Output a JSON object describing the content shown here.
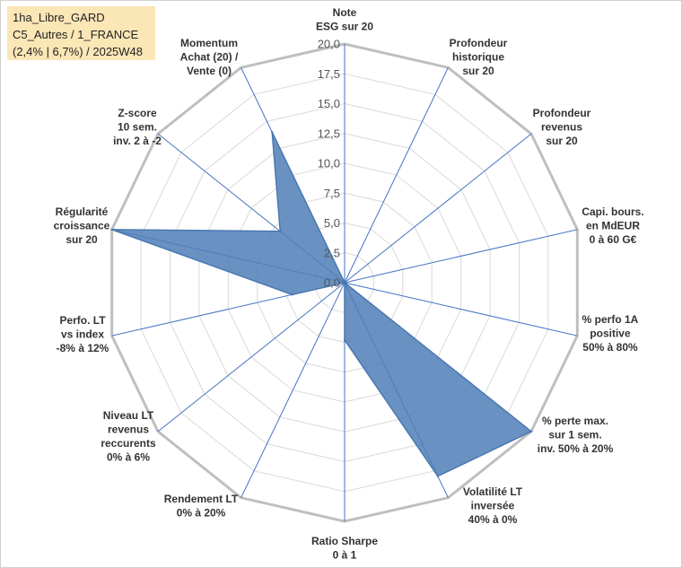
{
  "title_lines": [
    "1ha_Libre_GARD",
    "C5_Autres / 1_FRANCE",
    "(2,4% | 6,7%) / 2025W48"
  ],
  "colors": {
    "series_fill": "#4f7fb8",
    "series_stroke": "#4a78b0",
    "grid": "#d9d9d9",
    "outer": "#bfbfbf",
    "spoke": "#4472c4"
  },
  "chart_data": {
    "type": "radar",
    "range": [
      0,
      20
    ],
    "ticks": [
      "0,0",
      "2,5",
      "5,0",
      "7,5",
      "10,0",
      "12,5",
      "15,0",
      "17,5",
      "20,0"
    ],
    "axes": [
      {
        "label": [
          "Note",
          "ESG sur 20"
        ]
      },
      {
        "label": [
          "Profondeur",
          "historique",
          "sur 20"
        ]
      },
      {
        "label": [
          "Profondeur",
          "revenus",
          "sur 20"
        ]
      },
      {
        "label": [
          "Capi. bours.",
          "en MdEUR",
          "0 à 60 G€"
        ]
      },
      {
        "label": [
          "% perfo 1A",
          "positive",
          "50% à 80%"
        ]
      },
      {
        "label": [
          "% perte max.",
          "sur 1 sem.",
          "inv. 50% à 20%"
        ]
      },
      {
        "label": [
          "Volatilité LT",
          "inversée",
          "40% à 0%"
        ]
      },
      {
        "label": [
          "Ratio Sharpe",
          "0 à 1"
        ]
      },
      {
        "label": [
          "Rendement LT",
          "0% à 20%"
        ]
      },
      {
        "label": [
          "Niveau LT",
          "revenus",
          "reccurents",
          "0% à 6%"
        ]
      },
      {
        "label": [
          "Perfo. LT",
          "vs index",
          "-8% à 12%"
        ]
      },
      {
        "label": [
          "Régularité",
          "croissance",
          "sur 20"
        ]
      },
      {
        "label": [
          "Z-score",
          "10 sem.",
          "inv. 2 à -2"
        ]
      },
      {
        "label": [
          "Momentum",
          "Achat (20) /",
          "Vente (0)"
        ]
      }
    ],
    "series": [
      {
        "name": "1ha_Libre_GARD",
        "values": [
          0,
          0,
          0,
          0,
          0,
          20,
          18,
          4.8,
          0,
          0,
          4.5,
          20,
          6.9,
          14
        ]
      }
    ]
  }
}
